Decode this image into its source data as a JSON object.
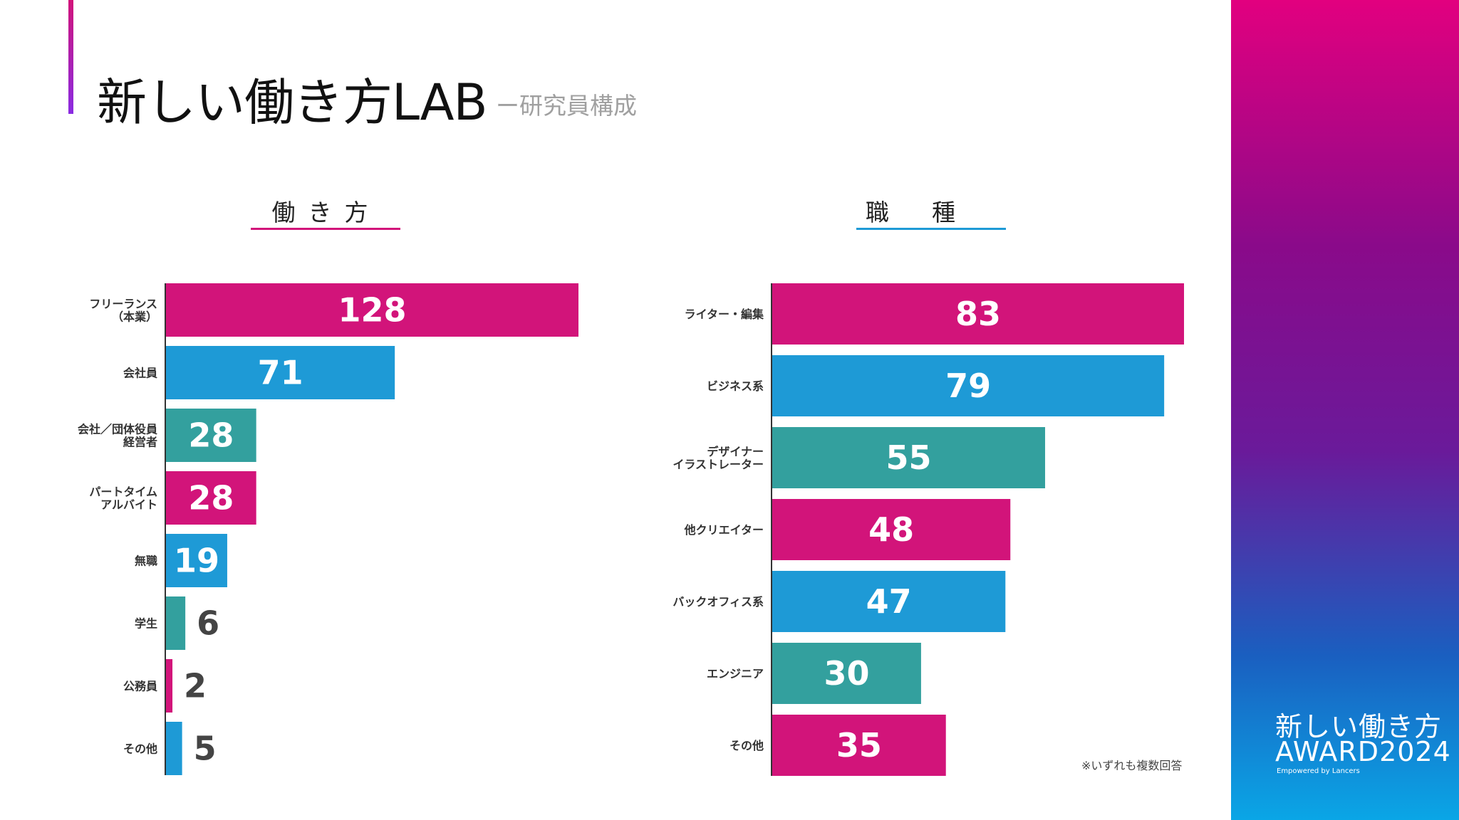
{
  "header": {
    "title": "新しい働き方LAB",
    "subtitle": "ー研究員構成"
  },
  "left_section": {
    "title": "働き方"
  },
  "right_section": {
    "title": "職種"
  },
  "footnote": "※いずれも複数回答",
  "brand": {
    "line1": "新しい働き方",
    "line2": "AWARD2024",
    "line3": "Empowered by Lancers"
  },
  "colors": {
    "magenta": "#d2147a",
    "blue": "#1e9ad6",
    "teal": "#33a09e",
    "value_dark": "#444444"
  },
  "chart_data": [
    {
      "type": "bar",
      "orientation": "horizontal",
      "title": "働き方",
      "categories": [
        [
          "フリーランス",
          "（本業）"
        ],
        [
          "会社員"
        ],
        [
          "会社／団体役員",
          "経営者"
        ],
        [
          "パートタイム",
          "アルバイト"
        ],
        [
          "無職"
        ],
        [
          "学生"
        ],
        [
          "公務員"
        ],
        [
          "その他"
        ]
      ],
      "values": [
        128,
        71,
        28,
        28,
        19,
        6,
        2,
        5
      ],
      "bar_colors": [
        "magenta",
        "blue",
        "teal",
        "magenta",
        "blue",
        "teal",
        "magenta",
        "blue"
      ]
    },
    {
      "type": "bar",
      "orientation": "horizontal",
      "title": "職種",
      "categories": [
        [
          "ライター・編集"
        ],
        [
          "ビジネス系"
        ],
        [
          "デザイナー",
          "イラストレーター"
        ],
        [
          "他クリエイター"
        ],
        [
          "バックオフィス系"
        ],
        [
          "エンジニア"
        ],
        [
          "その他"
        ]
      ],
      "values": [
        83,
        79,
        55,
        48,
        47,
        30,
        35
      ],
      "bar_colors": [
        "magenta",
        "blue",
        "teal",
        "magenta",
        "blue",
        "teal",
        "magenta"
      ]
    }
  ]
}
